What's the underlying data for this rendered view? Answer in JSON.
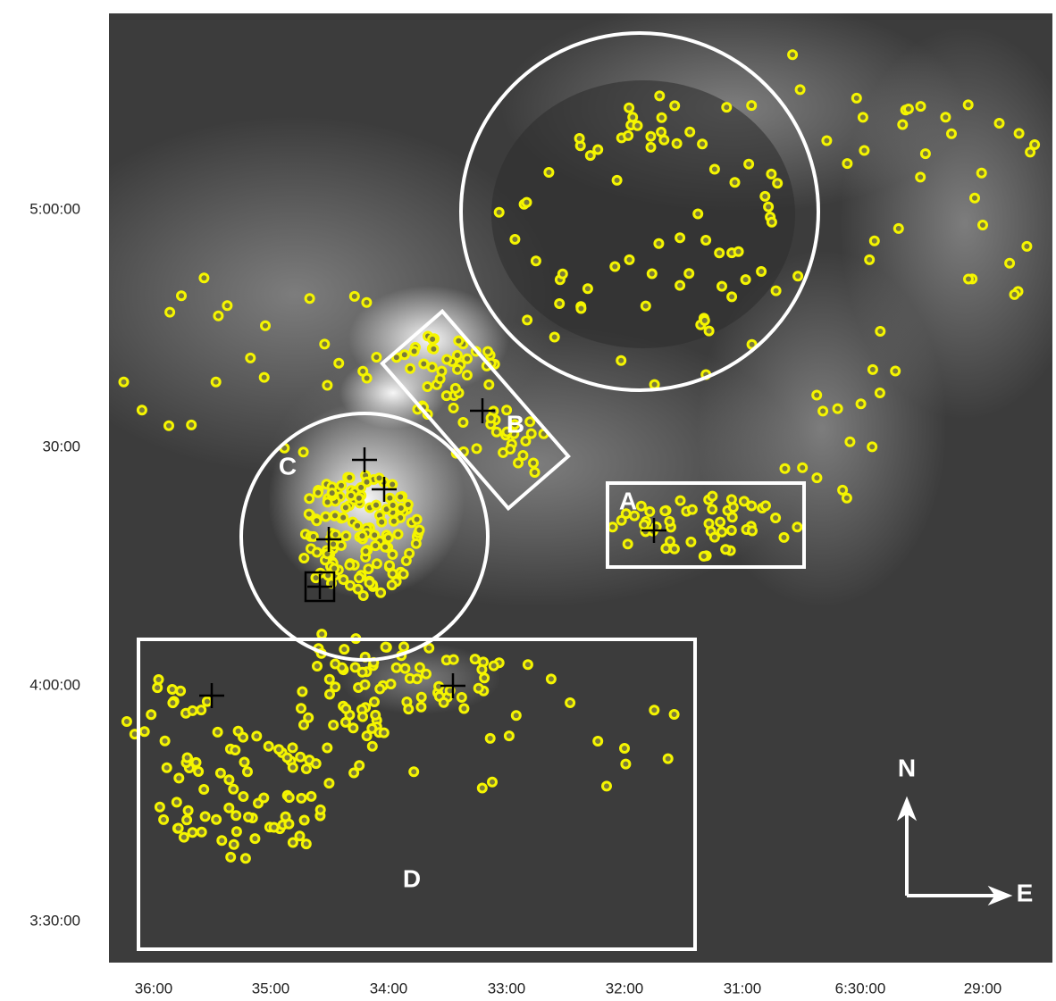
{
  "y_axis": {
    "labels": [
      "5:00:00",
      "30:00",
      "4:00:00",
      "3:30:00"
    ]
  },
  "x_axis": {
    "labels": [
      "36:00",
      "35:00",
      "34:00",
      "33:00",
      "32:00",
      "31:00",
      "6:30:00",
      "29:00"
    ]
  },
  "regions": [
    {
      "label": "A"
    },
    {
      "label": "B"
    },
    {
      "label": "C"
    },
    {
      "label": "D"
    }
  ],
  "compass": {
    "north": "N",
    "east": "E"
  }
}
